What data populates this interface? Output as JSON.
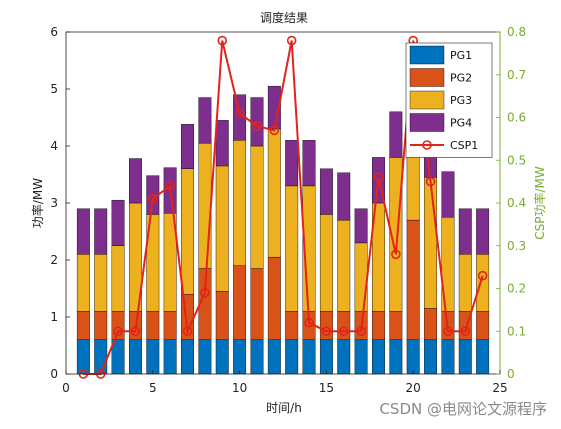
{
  "chart_data": {
    "type": "bar",
    "stacked": true,
    "title": "调度结果",
    "xlabel": "时间/h",
    "ylabel_left": "功率/MW",
    "ylabel_right": "CSP功率/MW",
    "x": [
      1,
      2,
      3,
      4,
      5,
      6,
      7,
      8,
      9,
      10,
      11,
      12,
      13,
      14,
      15,
      16,
      17,
      18,
      19,
      20,
      21,
      22,
      23,
      24
    ],
    "xlim": [
      0,
      25
    ],
    "xticks": [
      "0",
      "5",
      "10",
      "15",
      "20",
      "25"
    ],
    "ylim_left": [
      0,
      6
    ],
    "yticks_left": [
      "0",
      "1",
      "2",
      "3",
      "4",
      "5",
      "6"
    ],
    "ylim_right": [
      0,
      0.8
    ],
    "yticks_right": [
      "0",
      "0.1",
      "0.2",
      "0.3",
      "0.4",
      "0.5",
      "0.6",
      "0.7",
      "0.8"
    ],
    "grid": false,
    "legend_position": "top-right",
    "series": [
      {
        "name": "PG1",
        "color": "#0072BD",
        "axis": "left",
        "values": [
          0.6,
          0.6,
          0.6,
          0.6,
          0.6,
          0.6,
          0.6,
          0.6,
          0.6,
          0.6,
          0.6,
          0.6,
          0.6,
          0.6,
          0.6,
          0.6,
          0.6,
          0.6,
          0.6,
          0.6,
          0.6,
          0.6,
          0.6,
          0.6
        ]
      },
      {
        "name": "PG2",
        "color": "#D95319",
        "axis": "left",
        "values": [
          0.5,
          0.5,
          0.5,
          0.5,
          0.5,
          0.5,
          0.8,
          1.25,
          0.85,
          1.3,
          1.25,
          1.45,
          0.5,
          0.5,
          0.5,
          0.5,
          0.5,
          0.5,
          0.5,
          2.1,
          0.55,
          0.5,
          0.5,
          0.5
        ]
      },
      {
        "name": "PG3",
        "color": "#EDB120",
        "axis": "left",
        "values": [
          1.0,
          1.0,
          1.15,
          1.9,
          1.7,
          1.72,
          2.2,
          2.2,
          2.2,
          2.2,
          2.15,
          2.25,
          2.2,
          2.2,
          1.7,
          1.6,
          1.2,
          1.9,
          2.7,
          2.1,
          2.3,
          1.65,
          1.0,
          1.0
        ]
      },
      {
        "name": "PG4",
        "color": "#7E2F8E",
        "axis": "left",
        "values": [
          0.8,
          0.8,
          0.8,
          0.78,
          0.68,
          0.8,
          0.78,
          0.8,
          0.8,
          0.8,
          0.85,
          0.75,
          0.8,
          0.8,
          0.8,
          0.83,
          0.6,
          0.8,
          0.8,
          0.8,
          0.7,
          0.8,
          0.8,
          0.8
        ]
      },
      {
        "name": "CSP1",
        "color": "#E2231A",
        "axis": "right",
        "type": "line",
        "marker": "circle",
        "values": [
          0.0,
          0.0,
          0.1,
          0.1,
          0.41,
          0.44,
          0.1,
          0.19,
          0.78,
          0.61,
          0.58,
          0.57,
          0.78,
          0.12,
          0.1,
          0.1,
          0.1,
          0.46,
          0.28,
          0.78,
          0.45,
          0.1,
          0.1,
          0.23
        ]
      }
    ]
  },
  "watermark": "CSDN @电网论文源程序"
}
